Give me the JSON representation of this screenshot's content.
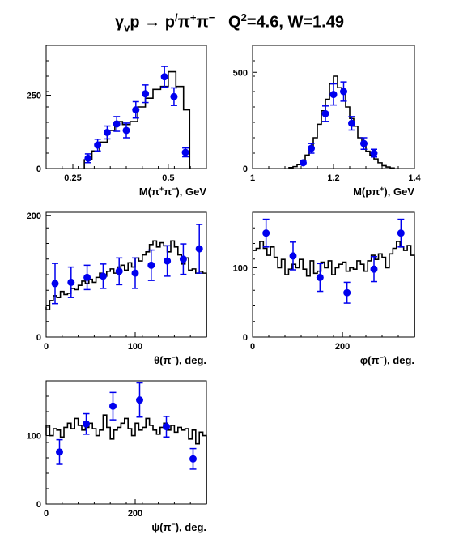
{
  "title": {
    "pre": "γ",
    "sub1": "v",
    "mid1": "p → p",
    "sup1": "/",
    "mid2": "π",
    "sup2": "+",
    "mid3": "π",
    "sup3": "−",
    "q": "   Q",
    "sup4": "2",
    "rest": "=4.6, W=1.49"
  },
  "colors": {
    "data_points": "#0000ee",
    "histogram": "#000000",
    "axes": "#000000"
  },
  "chart_data": [
    {
      "id": "m_pipi",
      "type": "histogram+errorbar",
      "xlabel_parts": [
        "M(π",
        "+",
        "π",
        "−",
        "), GeV"
      ],
      "xlim": [
        0.18,
        0.6
      ],
      "ylim": [
        0,
        420
      ],
      "xticks": [
        {
          "v": 0.25,
          "label": "0.25"
        },
        {
          "v": 0.5,
          "label": "0.5"
        }
      ],
      "yticks": [
        {
          "v": 0,
          "label": "0"
        },
        {
          "v": 250,
          "label": "250"
        }
      ],
      "hist_edges": [
        0.28,
        0.3,
        0.32,
        0.34,
        0.36,
        0.38,
        0.4,
        0.42,
        0.44,
        0.46,
        0.48,
        0.5,
        0.52,
        0.54,
        0.556
      ],
      "hist_values": [
        30,
        60,
        90,
        130,
        160,
        150,
        160,
        210,
        240,
        270,
        280,
        330,
        280,
        200
      ],
      "hist_start": 0,
      "points": [
        {
          "x": 0.29,
          "y": 35,
          "err": 15
        },
        {
          "x": 0.315,
          "y": 80,
          "err": 20
        },
        {
          "x": 0.34,
          "y": 123,
          "err": 22
        },
        {
          "x": 0.365,
          "y": 152,
          "err": 25
        },
        {
          "x": 0.39,
          "y": 130,
          "err": 25
        },
        {
          "x": 0.415,
          "y": 200,
          "err": 28
        },
        {
          "x": 0.44,
          "y": 255,
          "err": 30
        },
        {
          "x": 0.49,
          "y": 313,
          "err": 35
        },
        {
          "x": 0.515,
          "y": 245,
          "err": 30
        },
        {
          "x": 0.545,
          "y": 55,
          "err": 15
        }
      ]
    },
    {
      "id": "m_ppiplus",
      "type": "histogram+errorbar",
      "xlabel_parts": [
        "M(pπ",
        "+",
        "), GeV"
      ],
      "xlim": [
        1.0,
        1.4
      ],
      "ylim": [
        0,
        640
      ],
      "xticks": [
        {
          "v": 1.0,
          "label": "1"
        },
        {
          "v": 1.2,
          "label": "1.2"
        },
        {
          "v": 1.4,
          "label": "1.4"
        }
      ],
      "yticks": [
        {
          "v": 0,
          "label": "0"
        },
        {
          "v": 500,
          "label": "500"
        }
      ],
      "hist_edges": [
        1.09,
        1.1,
        1.11,
        1.12,
        1.13,
        1.14,
        1.15,
        1.16,
        1.17,
        1.18,
        1.19,
        1.2,
        1.21,
        1.22,
        1.23,
        1.24,
        1.25,
        1.26,
        1.27,
        1.28,
        1.29,
        1.3,
        1.31,
        1.32,
        1.33,
        1.34,
        1.35
      ],
      "hist_values": [
        5,
        10,
        20,
        40,
        70,
        110,
        160,
        230,
        300,
        360,
        440,
        480,
        420,
        390,
        320,
        260,
        220,
        160,
        120,
        90,
        70,
        50,
        30,
        15,
        8,
        3
      ],
      "hist_start": 0,
      "points": [
        {
          "x": 1.125,
          "y": 30,
          "err": 10
        },
        {
          "x": 1.145,
          "y": 105,
          "err": 25
        },
        {
          "x": 1.18,
          "y": 285,
          "err": 40
        },
        {
          "x": 1.2,
          "y": 385,
          "err": 55
        },
        {
          "x": 1.225,
          "y": 400,
          "err": 50
        },
        {
          "x": 1.245,
          "y": 235,
          "err": 35
        },
        {
          "x": 1.275,
          "y": 130,
          "err": 30
        },
        {
          "x": 1.3,
          "y": 80,
          "err": 20
        }
      ]
    },
    {
      "id": "theta",
      "type": "histogram+errorbar",
      "xlabel_parts": [
        "θ(π",
        "−",
        "), deg."
      ],
      "xlim": [
        0,
        180
      ],
      "ylim": [
        0,
        205
      ],
      "xticks": [
        {
          "v": 0,
          "label": "0"
        },
        {
          "v": 100,
          "label": "100"
        }
      ],
      "yticks": [
        {
          "v": 0,
          "label": "0"
        },
        {
          "v": 200,
          "label": "200"
        }
      ],
      "hist_edges": [
        0,
        4,
        8,
        12,
        16,
        20,
        24,
        28,
        32,
        36,
        40,
        44,
        48,
        52,
        56,
        60,
        64,
        68,
        72,
        76,
        80,
        84,
        88,
        92,
        96,
        100,
        104,
        108,
        112,
        116,
        120,
        124,
        128,
        132,
        136,
        140,
        144,
        148,
        152,
        156,
        160,
        164,
        168,
        172,
        176,
        180
      ],
      "hist_values": [
        45,
        60,
        68,
        65,
        75,
        70,
        72,
        80,
        78,
        85,
        92,
        88,
        95,
        90,
        98,
        105,
        100,
        108,
        112,
        105,
        115,
        118,
        110,
        122,
        115,
        130,
        125,
        135,
        140,
        152,
        158,
        148,
        155,
        150,
        140,
        158,
        148,
        135,
        120,
        130,
        110,
        112,
        105,
        108,
        105
      ],
      "hist_start": 50,
      "points": [
        {
          "x": 10,
          "y": 88,
          "err": 33
        },
        {
          "x": 28,
          "y": 90,
          "err": 25
        },
        {
          "x": 46,
          "y": 98,
          "err": 20
        },
        {
          "x": 64,
          "y": 100,
          "err": 20
        },
        {
          "x": 82,
          "y": 108,
          "err": 22
        },
        {
          "x": 100,
          "y": 105,
          "err": 25
        },
        {
          "x": 118,
          "y": 118,
          "err": 25
        },
        {
          "x": 136,
          "y": 125,
          "err": 25
        },
        {
          "x": 154,
          "y": 128,
          "err": 25
        },
        {
          "x": 172,
          "y": 145,
          "err": 40
        }
      ]
    },
    {
      "id": "phi",
      "type": "histogram+errorbar",
      "xlabel_parts": [
        "φ(π",
        "−",
        "), deg."
      ],
      "xlim": [
        0,
        360
      ],
      "ylim": [
        0,
        180
      ],
      "xticks": [
        {
          "v": 0,
          "label": "0"
        },
        {
          "v": 200,
          "label": "200"
        }
      ],
      "yticks": [
        {
          "v": 0,
          "label": "0"
        },
        {
          "v": 100,
          "label": "100"
        }
      ],
      "hist_edges": [
        0,
        8,
        16,
        24,
        32,
        40,
        48,
        56,
        64,
        72,
        80,
        88,
        96,
        104,
        112,
        120,
        128,
        136,
        144,
        152,
        160,
        168,
        176,
        184,
        192,
        200,
        208,
        216,
        224,
        232,
        240,
        248,
        256,
        264,
        272,
        280,
        288,
        296,
        304,
        312,
        320,
        328,
        336,
        344,
        352,
        360
      ],
      "hist_values": [
        125,
        128,
        138,
        128,
        118,
        130,
        115,
        100,
        112,
        90,
        98,
        105,
        100,
        112,
        98,
        88,
        110,
        92,
        95,
        108,
        100,
        110,
        90,
        100,
        105,
        108,
        95,
        100,
        98,
        110,
        105,
        95,
        110,
        118,
        112,
        120,
        115,
        100,
        120,
        128,
        138,
        130,
        125,
        132,
        118
      ],
      "hist_start": 125,
      "points": [
        {
          "x": 30,
          "y": 150,
          "err": 20
        },
        {
          "x": 90,
          "y": 117,
          "err": 20
        },
        {
          "x": 150,
          "y": 86,
          "err": 20
        },
        {
          "x": 210,
          "y": 64,
          "err": 15
        },
        {
          "x": 270,
          "y": 98,
          "err": 18
        },
        {
          "x": 330,
          "y": 150,
          "err": 20
        }
      ]
    },
    {
      "id": "psi",
      "type": "histogram+errorbar",
      "xlabel_parts": [
        "ψ(π",
        "−",
        "), deg."
      ],
      "xlim": [
        0,
        360
      ],
      "ylim": [
        0,
        180
      ],
      "xticks": [
        {
          "v": 0,
          "label": "0"
        },
        {
          "v": 200,
          "label": "200"
        }
      ],
      "yticks": [
        {
          "v": 0,
          "label": "0"
        },
        {
          "v": 100,
          "label": "100"
        }
      ],
      "hist_edges": [
        0,
        8,
        16,
        24,
        32,
        40,
        48,
        56,
        64,
        72,
        80,
        88,
        96,
        104,
        112,
        120,
        128,
        136,
        144,
        152,
        160,
        168,
        176,
        184,
        192,
        200,
        208,
        216,
        224,
        232,
        240,
        248,
        256,
        264,
        272,
        280,
        288,
        296,
        304,
        312,
        320,
        328,
        336,
        344,
        352,
        360
      ],
      "hist_values": [
        115,
        100,
        110,
        108,
        98,
        112,
        118,
        110,
        125,
        115,
        108,
        112,
        118,
        110,
        100,
        108,
        130,
        112,
        95,
        108,
        112,
        118,
        125,
        110,
        100,
        118,
        108,
        112,
        125,
        115,
        108,
        102,
        112,
        118,
        108,
        115,
        105,
        112,
        108,
        110,
        95,
        108,
        88,
        105,
        100
      ],
      "hist_start": 100,
      "points": [
        {
          "x": 30,
          "y": 76,
          "err": 18
        },
        {
          "x": 90,
          "y": 117,
          "err": 15
        },
        {
          "x": 150,
          "y": 143,
          "err": 20
        },
        {
          "x": 210,
          "y": 152,
          "err": 25
        },
        {
          "x": 270,
          "y": 113,
          "err": 15
        },
        {
          "x": 330,
          "y": 66,
          "err": 15
        }
      ]
    }
  ]
}
